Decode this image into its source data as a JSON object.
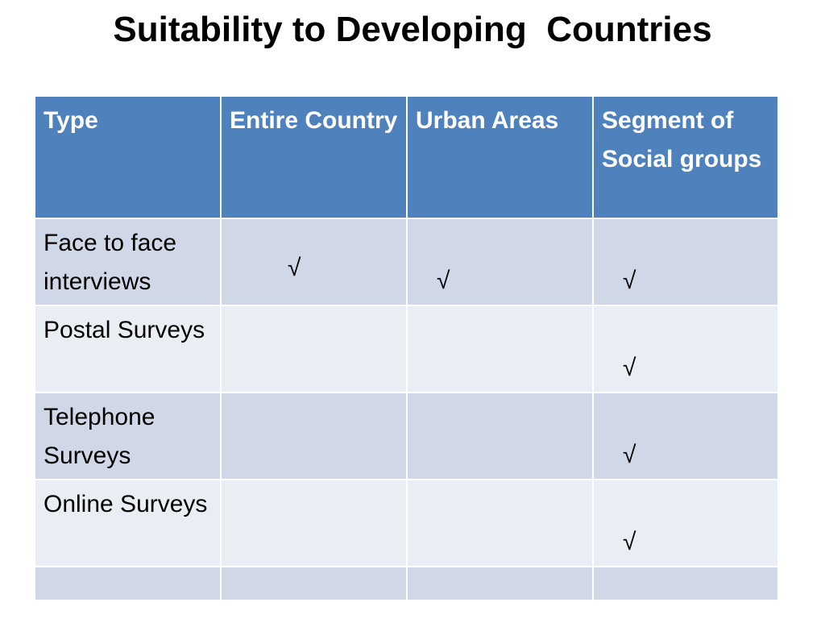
{
  "slide": {
    "title": "Suitability to Developing  Countries"
  },
  "table": {
    "headers": [
      "Type",
      "Entire Country",
      "Urban Areas",
      "Segment of Social groups"
    ],
    "rows": [
      {
        "type": "Face to face interviews",
        "entire_country": "√",
        "urban_areas": "√",
        "segment": "√"
      },
      {
        "type": "Postal Surveys",
        "entire_country": "",
        "urban_areas": "",
        "segment": "√"
      },
      {
        "type": "Telephone Surveys",
        "entire_country": "",
        "urban_areas": "",
        "segment": "√"
      },
      {
        "type": "Online Surveys",
        "entire_country": "",
        "urban_areas": "",
        "segment": "√"
      },
      {
        "type": "",
        "entire_country": "",
        "urban_areas": "",
        "segment": ""
      }
    ]
  },
  "colors": {
    "header_bg": "#4f81bd",
    "row_odd_bg": "#d0d8e8",
    "row_even_bg": "#e9edf4"
  }
}
